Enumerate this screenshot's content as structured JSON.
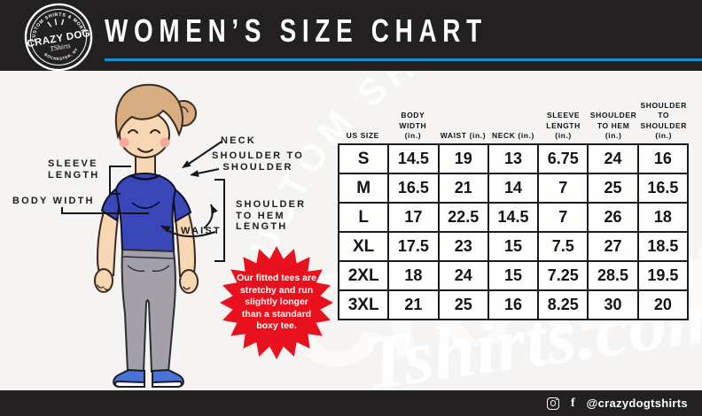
{
  "header": {
    "title": "WOMEN’S SIZE CHART",
    "bg_color": "#232021",
    "accent_line_color": "#1b8ccd",
    "logo": {
      "arc_top": "CUSTOM SHIRTS & MORE",
      "name": "CRAZY DOG",
      "script": "TShirts",
      "arc_bottom": "ROCHESTER, NY"
    }
  },
  "watermark": {
    "arc_text": "CUSTOM SHIRTS & MORE",
    "big_text": "CRAZY",
    "script_text": "Tshirts.com"
  },
  "diagram": {
    "labels": {
      "sleeve_length": "SLEEVE\nLENGTH",
      "body_width": "BODY WIDTH",
      "neck": "NECK",
      "shoulder_to_shoulder": "SHOULDER TO\nSHOULDER",
      "shoulder_to_hem": "SHOULDER\nTO HEM\nLENGTH",
      "waist": "WAIST"
    },
    "note_badge": {
      "text": "Our fitted tees are stretchy and run slightly longer than a standard boxy tee.",
      "color": "#e9111d"
    },
    "shirt_color": "#3a47b8",
    "skin_color": "#f6d6b3",
    "hair_color": "#d9ad82",
    "jeans_color": "#a3a0a8",
    "shoe_color": "#4a72d8"
  },
  "size_chart": {
    "columns": [
      "US SIZE",
      "BODY\nWIDTH\n(in.)",
      "WAIST (in.)",
      "NECK (in.)",
      "SLEEVE\nLENGTH\n(in.)",
      "SHOULDER\nTO HEM\n(in.)",
      "SHOULDER TO\nSHOULDER\n(in.)"
    ],
    "rows": [
      {
        "size": "S",
        "values": [
          "14.5",
          "19",
          "13",
          "6.75",
          "24",
          "16"
        ]
      },
      {
        "size": "M",
        "values": [
          "16.5",
          "21",
          "14",
          "7",
          "25",
          "16.5"
        ]
      },
      {
        "size": "L",
        "values": [
          "17",
          "22.5",
          "14.5",
          "7",
          "26",
          "18"
        ]
      },
      {
        "size": "XL",
        "values": [
          "17.5",
          "23",
          "15",
          "7.5",
          "27",
          "18.5"
        ]
      },
      {
        "size": "2XL",
        "values": [
          "18",
          "24",
          "15",
          "7.25",
          "28.5",
          "19.5"
        ]
      },
      {
        "size": "3XL",
        "values": [
          "21",
          "25",
          "16",
          "8.25",
          "30",
          "20"
        ]
      }
    ]
  },
  "footer": {
    "handle": "@crazydogtshirts"
  }
}
